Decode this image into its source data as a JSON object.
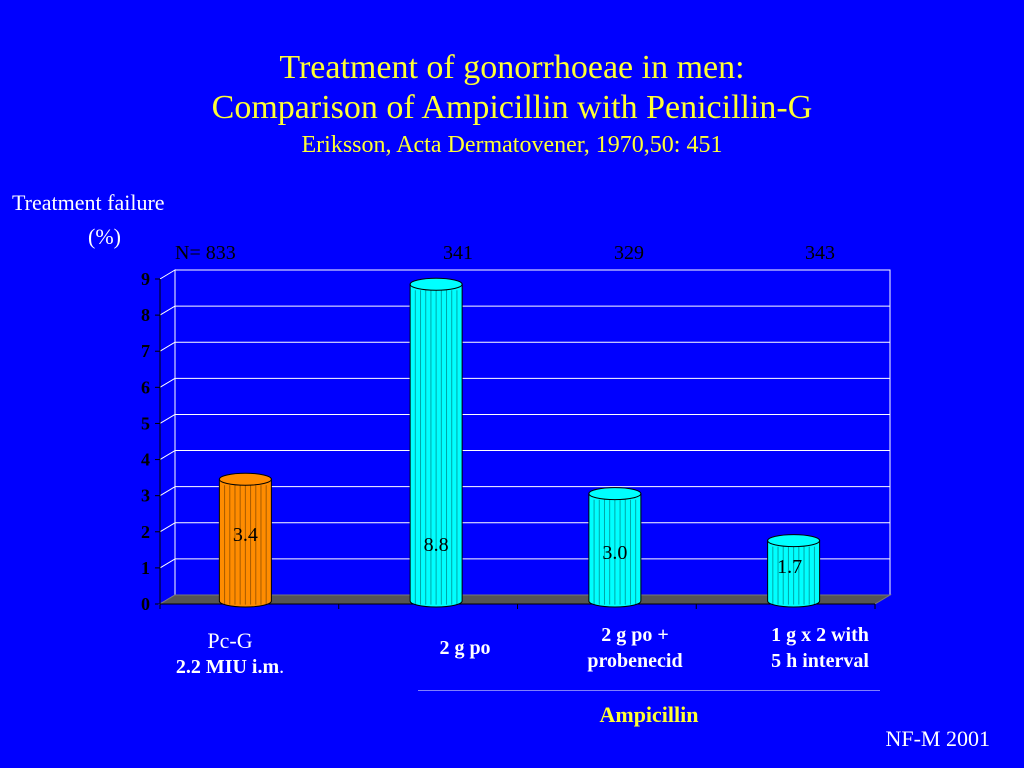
{
  "colors": {
    "background": "#0000ff",
    "title": "#ffff33",
    "pcg_bar": "#ff8c00",
    "ampicillin_bar": "#00ffff",
    "grid": "#ffffff",
    "floor": "#555555"
  },
  "slide": {
    "title_line1": "Treatment of gonorrhoeae in men:",
    "title_line2": "Comparison of Ampicillin with Penicillin-G",
    "subtitle": "Eriksson, Acta Dermatovener, 1970,50: 451",
    "ylabel_line1": "Treatment failure",
    "ylabel_line2": "(%)",
    "footer": "NF-M 2001",
    "group_label": "Ampicillin"
  },
  "n_labels": [
    "N= 833",
    "341",
    "329",
    "343"
  ],
  "xlabels": [
    {
      "line1": "Pc-G",
      "line2": "2.2 MIU i.m",
      "line2_suffix": "."
    },
    {
      "line1": "2 g po",
      "line2": ""
    },
    {
      "line1": "2 g po +",
      "line2": "probenecid"
    },
    {
      "line1": "1 g x 2 with",
      "line2": "5 h interval"
    }
  ],
  "chart_data": {
    "type": "bar",
    "categories": [
      "Pc-G 2.2 MIU i.m.",
      "2 g po",
      "2 g po + probenecid",
      "1 g x 2 with 5 h interval"
    ],
    "values": [
      3.4,
      8.8,
      3.0,
      1.7
    ],
    "data_labels": [
      "3.4",
      "8.8",
      "3.0",
      "1.7"
    ],
    "yticks": [
      "0",
      "1",
      "2",
      "3",
      "4",
      "5",
      "6",
      "7",
      "8",
      "9"
    ],
    "ylim": [
      0,
      9
    ],
    "grid": true,
    "title": "Treatment of gonorrhoeae in men: Comparison of Ampicillin with Penicillin-G",
    "ylabel": "Treatment failure (%)",
    "xlabel": ""
  }
}
